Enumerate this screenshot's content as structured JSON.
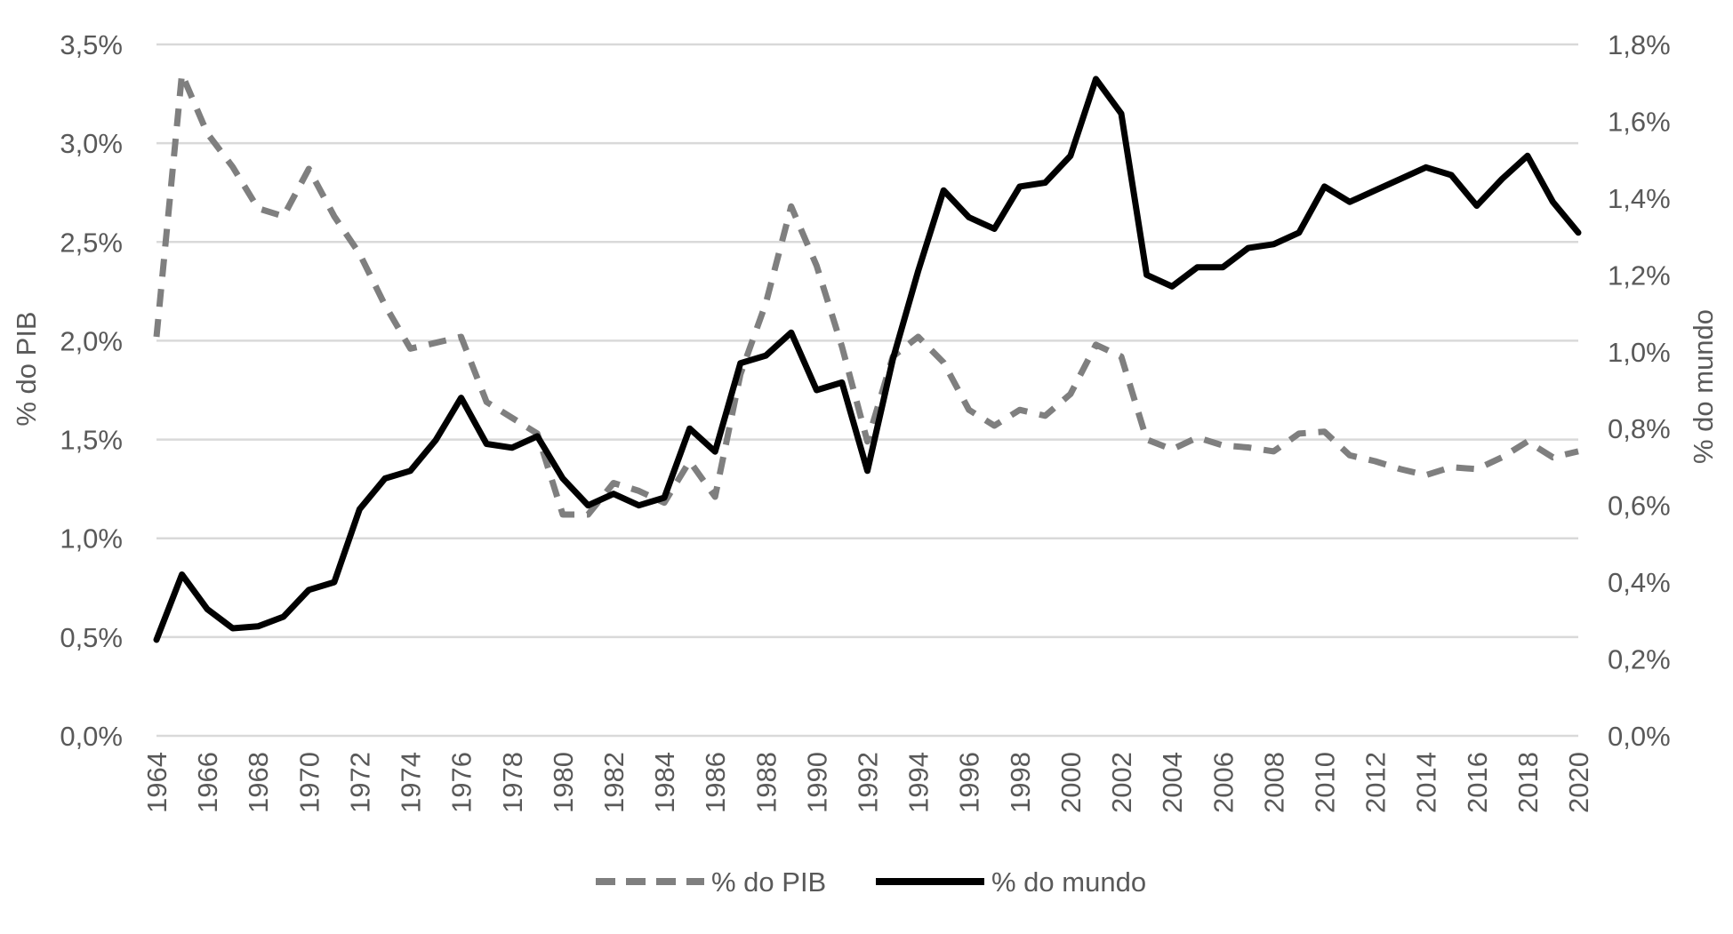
{
  "chart_data": {
    "type": "line",
    "title": "",
    "xlabel": "",
    "ylabel_left": "% do PIB",
    "ylabel_right": "% do mundo",
    "x": [
      1964,
      1965,
      1966,
      1967,
      1968,
      1969,
      1970,
      1971,
      1972,
      1973,
      1974,
      1975,
      1976,
      1977,
      1978,
      1979,
      1980,
      1981,
      1982,
      1983,
      1984,
      1985,
      1986,
      1987,
      1988,
      1989,
      1990,
      1991,
      1992,
      1993,
      1994,
      1995,
      1996,
      1997,
      1998,
      1999,
      2000,
      2001,
      2002,
      2003,
      2004,
      2005,
      2006,
      2007,
      2008,
      2009,
      2010,
      2011,
      2012,
      2013,
      2014,
      2015,
      2016,
      2017,
      2018,
      2019,
      2020
    ],
    "x_ticks": [
      "1964",
      "1966",
      "1968",
      "1970",
      "1972",
      "1974",
      "1976",
      "1978",
      "1980",
      "1982",
      "1984",
      "1986",
      "1988",
      "1990",
      "1992",
      "1994",
      "1996",
      "1998",
      "2000",
      "2002",
      "2004",
      "2006",
      "2008",
      "2010",
      "2012",
      "2014",
      "2016",
      "2018",
      "2020"
    ],
    "y_left_ticks": [
      "0,0%",
      "0,5%",
      "1,0%",
      "1,5%",
      "2,0%",
      "2,5%",
      "3,0%",
      "3,5%"
    ],
    "y_right_ticks": [
      "0,0%",
      "0,2%",
      "0,4%",
      "0,6%",
      "0,8%",
      "1,0%",
      "1,2%",
      "1,4%",
      "1,6%",
      "1,8%"
    ],
    "ylim_left": [
      0,
      3.5
    ],
    "ylim_right": [
      0,
      1.8
    ],
    "grid": true,
    "legend": "bottom",
    "series": [
      {
        "name": "% do PIB",
        "axis": "left",
        "style": "dashed",
        "color": "#7f7f7f",
        "values": [
          2.02,
          3.35,
          3.05,
          2.88,
          2.67,
          2.63,
          2.87,
          2.63,
          2.44,
          2.18,
          1.96,
          1.99,
          2.02,
          1.69,
          1.61,
          1.53,
          1.12,
          1.12,
          1.28,
          1.24,
          1.18,
          1.39,
          1.21,
          1.83,
          2.19,
          2.68,
          2.38,
          1.97,
          1.49,
          1.92,
          2.02,
          1.89,
          1.65,
          1.57,
          1.65,
          1.62,
          1.73,
          1.98,
          1.92,
          1.5,
          1.45,
          1.51,
          1.47,
          1.46,
          1.44,
          1.53,
          1.54,
          1.42,
          1.39,
          1.35,
          1.32,
          1.36,
          1.35,
          1.41,
          1.49,
          1.41,
          1.44
        ]
      },
      {
        "name": "% do mundo",
        "axis": "right",
        "style": "solid",
        "color": "#000000",
        "values": [
          0.25,
          0.42,
          0.33,
          0.28,
          0.285,
          0.31,
          0.38,
          0.4,
          0.59,
          0.67,
          0.69,
          0.77,
          0.88,
          0.76,
          0.75,
          0.78,
          0.67,
          0.6,
          0.63,
          0.6,
          0.62,
          0.8,
          0.74,
          0.97,
          0.99,
          1.05,
          0.9,
          0.92,
          0.69,
          0.98,
          1.21,
          1.42,
          1.35,
          1.32,
          1.43,
          1.44,
          1.51,
          1.71,
          1.62,
          1.2,
          1.17,
          1.22,
          1.22,
          1.27,
          1.28,
          1.31,
          1.43,
          1.39,
          1.42,
          1.45,
          1.48,
          1.46,
          1.38,
          1.45,
          1.51,
          1.39,
          1.31
        ]
      }
    ]
  }
}
